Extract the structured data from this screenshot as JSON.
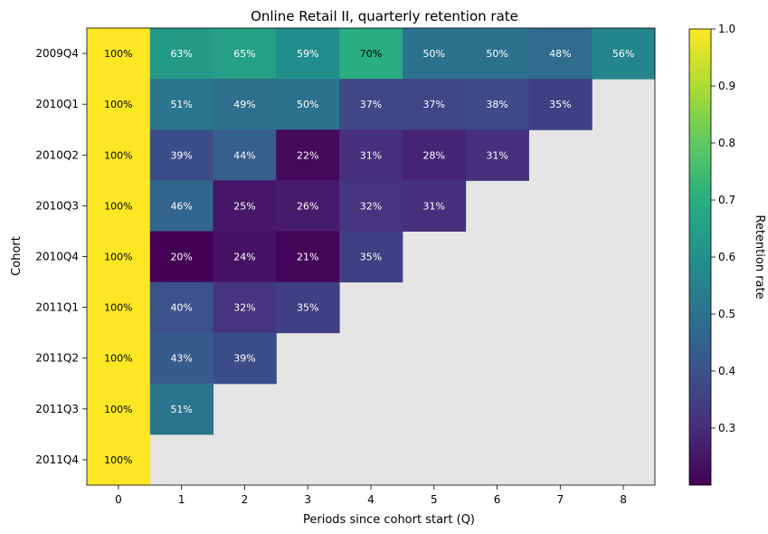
{
  "chart_data": {
    "type": "heatmap",
    "title": "Online Retail II, quarterly retention rate",
    "xlabel": "Periods since cohort start (Q)",
    "ylabel": "Cohort",
    "x_categories": [
      "0",
      "1",
      "2",
      "3",
      "4",
      "5",
      "6",
      "7",
      "8"
    ],
    "y_categories": [
      "2009Q4",
      "2010Q1",
      "2010Q2",
      "2010Q3",
      "2010Q4",
      "2011Q1",
      "2011Q2",
      "2011Q3",
      "2011Q4"
    ],
    "values": [
      [
        1.0,
        0.63,
        0.65,
        0.59,
        0.7,
        0.5,
        0.5,
        0.48,
        0.56
      ],
      [
        1.0,
        0.51,
        0.49,
        0.5,
        0.37,
        0.37,
        0.38,
        0.35
      ],
      [
        1.0,
        0.39,
        0.44,
        0.22,
        0.31,
        0.28,
        0.31
      ],
      [
        1.0,
        0.46,
        0.25,
        0.26,
        0.32,
        0.31
      ],
      [
        1.0,
        0.2,
        0.24,
        0.21,
        0.35
      ],
      [
        1.0,
        0.4,
        0.32,
        0.35
      ],
      [
        1.0,
        0.43,
        0.39
      ],
      [
        1.0,
        0.51
      ],
      [
        1.0
      ]
    ],
    "cell_labels": [
      [
        "100%",
        "63%",
        "65%",
        "59%",
        "70%",
        "50%",
        "50%",
        "48%",
        "56%"
      ],
      [
        "100%",
        "51%",
        "49%",
        "50%",
        "37%",
        "37%",
        "38%",
        "35%"
      ],
      [
        "100%",
        "39%",
        "44%",
        "22%",
        "31%",
        "28%",
        "31%"
      ],
      [
        "100%",
        "46%",
        "25%",
        "26%",
        "32%",
        "31%"
      ],
      [
        "100%",
        "20%",
        "24%",
        "21%",
        "35%"
      ],
      [
        "100%",
        "40%",
        "32%",
        "35%"
      ],
      [
        "100%",
        "43%",
        "39%"
      ],
      [
        "100%",
        "51%"
      ],
      [
        "100%"
      ]
    ],
    "missing_cell_color": "#e5e5e5",
    "colormap": "viridis",
    "color_range": [
      0.2,
      1.0
    ],
    "colorbar": {
      "label": "Retention rate",
      "ticks": [
        0.3,
        0.4,
        0.5,
        0.6,
        0.7,
        0.8,
        0.9,
        1.0
      ],
      "tick_labels": [
        "0.3",
        "0.4",
        "0.5",
        "0.6",
        "0.7",
        "0.8",
        "0.9",
        "1.0"
      ]
    },
    "grid": false
  }
}
